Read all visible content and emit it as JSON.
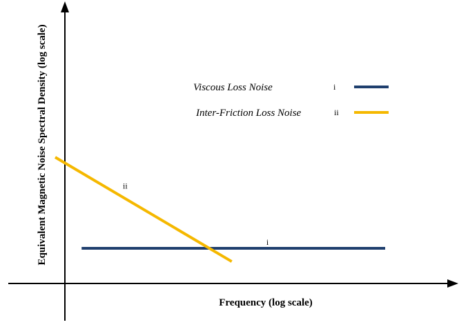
{
  "chart_data": {
    "type": "line",
    "title": "",
    "xlabel": "Frequency (log scale)",
    "ylabel": "Equivalent Magnetic Noise Spectral Density (log scale)",
    "x_scale": "log",
    "y_scale": "log",
    "grid": false,
    "legend_position": "top-right",
    "series": [
      {
        "name": "Viscous Loss Noise",
        "marker": "i",
        "color": "#1f3f6e",
        "points": [
          [
            0.08,
            0.25
          ],
          [
            1.0,
            0.25
          ]
        ]
      },
      {
        "name": "Inter-Friction Loss Noise",
        "marker": "ii",
        "color": "#f5b800",
        "points": [
          [
            0.0,
            0.525
          ],
          [
            0.535,
            0.21
          ]
        ]
      }
    ],
    "line_labels": [
      {
        "series": 1,
        "text": "ii",
        "at": [
          0.205,
          0.43
        ]
      },
      {
        "series": 0,
        "text": "i",
        "at": [
          0.64,
          0.26
        ]
      }
    ]
  }
}
